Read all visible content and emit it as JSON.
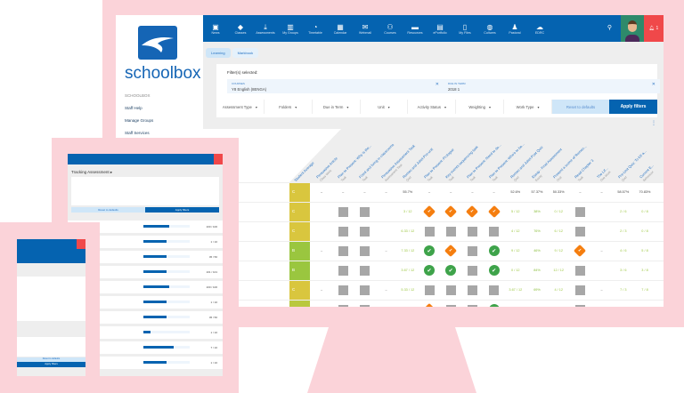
{
  "colors": {
    "brand": "#0563b0",
    "pink": "#fbd3d9",
    "alert": "#f0484a",
    "grade_c": "#d9c63e",
    "grade_b": "#9ac63f",
    "diamond": "#f57e0f",
    "check": "#3ea34a",
    "gray_box": "#a7a7a7"
  },
  "sidebar": {
    "brand": "schoolbox",
    "section": "SCHOOLBOX",
    "links": [
      "Staff Help",
      "Manage Groups",
      "Staff Services"
    ]
  },
  "nav": {
    "items": [
      {
        "label": "News",
        "icon": "news-icon",
        "g": "▣"
      },
      {
        "label": "Classes",
        "icon": "mortarboard-icon",
        "g": "◆"
      },
      {
        "label": "Assessments",
        "icon": "download-icon",
        "g": "⤓"
      },
      {
        "label": "My Groups",
        "icon": "groups-icon",
        "g": "▥"
      },
      {
        "label": "Timetable",
        "icon": "clock-icon",
        "g": "◔"
      },
      {
        "label": "Calendar",
        "icon": "calendar-icon",
        "g": "▦"
      },
      {
        "label": "Webmail",
        "icon": "mail-icon",
        "g": "✉"
      },
      {
        "label": "Courses",
        "icon": "courses-icon",
        "g": "⚇"
      },
      {
        "label": "Resources",
        "icon": "folder-icon",
        "g": "▬"
      },
      {
        "label": "ePortfolio",
        "icon": "briefcase-icon",
        "g": "▤"
      },
      {
        "label": "My Files",
        "icon": "files-icon",
        "g": "▯"
      },
      {
        "label": "Cultures",
        "icon": "globe-icon",
        "g": "◍"
      },
      {
        "label": "Pastoral",
        "icon": "person-icon",
        "g": "♟"
      },
      {
        "label": "EDRC",
        "icon": "cloud-icon",
        "g": "☁"
      }
    ],
    "bell_count": "1"
  },
  "tabs": [
    "Learning",
    "Markbook"
  ],
  "filters": {
    "label": "Filter(s) selected:",
    "chips": [
      {
        "key": "COURSES",
        "value": "Y8 English (8ENGA)"
      },
      {
        "key": "DUE IN TERM",
        "value": "2018 1"
      }
    ],
    "dropdowns": [
      "Assessment Type",
      "Folders",
      "Due in Term",
      "Unit",
      "Activity Status",
      "Weighting",
      "Work Type"
    ],
    "reset": "Reset to defaults",
    "apply": "Apply filters"
  },
  "grid": {
    "headers": [
      {
        "t": "Student Average",
        "s": ""
      },
      {
        "t": "Persuasive Article",
        "s": "Class Work"
      },
      {
        "t": "Plan to Present: Why is the...",
        "s": "Task"
      },
      {
        "t": "Fixed and living in classrooms",
        "s": "Task"
      },
      {
        "t": "Persuasive Assessment Task",
        "s": "Assessment Task"
      },
      {
        "t": "Romeo and Juliet Pre-unit",
        "s": "Quiz"
      },
      {
        "t": "Plan to Present: Prologue",
        "s": "Task"
      },
      {
        "t": "Key events sequencing task",
        "s": "Task"
      },
      {
        "t": "Plan to Present: Need to do...",
        "s": "Task"
      },
      {
        "t": "Plan to Present: Who's to be...",
        "s": "Task"
      },
      {
        "t": "Romeo and Juliet Post Quiz",
        "s": "Quiz"
      },
      {
        "t": "Essay - Final Assessment",
        "s": "Essay"
      },
      {
        "t": "Present a scene of Romeo...",
        "s": "Oral"
      },
      {
        "t": "Read Chapter 3",
        "s": "Task"
      },
      {
        "t": "The Lif...",
        "s": "Due Work"
      },
      {
        "t": "Pre-Unit Quiz: To kill a...",
        "s": "Quiz"
      },
      {
        "t": "Current E...",
        "s": "Behaviour"
      }
    ],
    "rows": [
      {
        "name": "Average",
        "grade": "C",
        "gc": "#d9c63e",
        "cells": [
          "–",
          "–",
          "–",
          "–",
          "55.7%",
          "–",
          "–",
          "–",
          "–",
          "52.6%",
          "57.37%",
          "50.33%",
          "–",
          "–",
          "58.57%",
          "70.83%",
          "–"
        ]
      },
      {
        "name": "..., Jamal",
        "grade": "C",
        "gc": "#d9c63e",
        "cells": [
          "",
          "G",
          "G",
          "",
          "3 / 12",
          "D",
          "D",
          "D",
          "D",
          "5 / 12",
          "38%",
          "0 / 12",
          "G",
          "",
          "2 / 6",
          "0 / 8",
          "N"
        ]
      },
      {
        "name": "..., Maria",
        "grade": "C",
        "gc": "#d9c63e",
        "cells": [
          "",
          "G",
          "G",
          "",
          "6.33 / 12",
          "G",
          "G",
          "G",
          "G",
          "4 / 12",
          "76%",
          "6 / 12",
          "G",
          "",
          "2 / 3",
          "0 / 8",
          "N"
        ]
      },
      {
        "name": "..., Penelope",
        "grade": "B",
        "gc": "#9ac63f",
        "cells": [
          "–",
          "G",
          "G",
          "–",
          "7.33 / 12",
          "C",
          "D",
          "G",
          "C",
          "9 / 12",
          "46%",
          "9 / 12",
          "D",
          "–",
          "4 / 6",
          "5 / 8",
          "Y"
        ]
      },
      {
        "name": "..., Jane",
        "grade": "B",
        "gc": "#9ac63f",
        "cells": [
          "",
          "G",
          "G",
          "",
          "3.67 / 12",
          "C",
          "C",
          "G",
          "C",
          "0 / 12",
          "84%",
          "12 / 12",
          "G",
          "",
          "3 / 6",
          "3 / 8",
          "N"
        ]
      },
      {
        "name": "..., Louisa",
        "grade": "C",
        "gc": "#d9c63e",
        "cells": [
          "–",
          "G",
          "G",
          "–",
          "5.33 / 12",
          "G",
          "G",
          "G",
          "G",
          "3.67 / 12",
          "69%",
          "4 / 12",
          "G",
          "–",
          "7 / 3",
          "7 / 8",
          "–"
        ]
      },
      {
        "name": "..., Leslie",
        "grade": "C+",
        "gc": "#b9c83e",
        "cells": [
          "",
          "G",
          "G",
          "",
          "4 / 12",
          "D",
          "G",
          "G",
          "C",
          "10 / 12",
          "0%",
          "3 / 12",
          "G",
          "",
          "3.33 / 3",
          "3 / 8",
          "–"
        ]
      }
    ]
  },
  "tablet": {
    "title": "Tracking Assessment ▸",
    "apply": "Apply filters",
    "reset": "Reset to defaults",
    "rows": [
      {
        "score": "100 / 100",
        "fill": 0.55
      },
      {
        "score": "1 / 10",
        "fill": 0.5
      },
      {
        "score": "45 / 50",
        "fill": 0.5
      },
      {
        "score": "101 / 101",
        "fill": 0.5
      },
      {
        "score": "100 / 100",
        "fill": 0.55
      },
      {
        "score": "1 / 10",
        "fill": 0.5
      },
      {
        "score": "45 / 50",
        "fill": 0.5
      },
      {
        "score": "1 / 10",
        "fill": 0.15
      },
      {
        "score": "7 / 10",
        "fill": 0.65
      },
      {
        "score": "1 / 10",
        "fill": 0.5
      }
    ]
  },
  "phone": {
    "apply": "Apply filters",
    "reset": "Reset to defaults"
  }
}
